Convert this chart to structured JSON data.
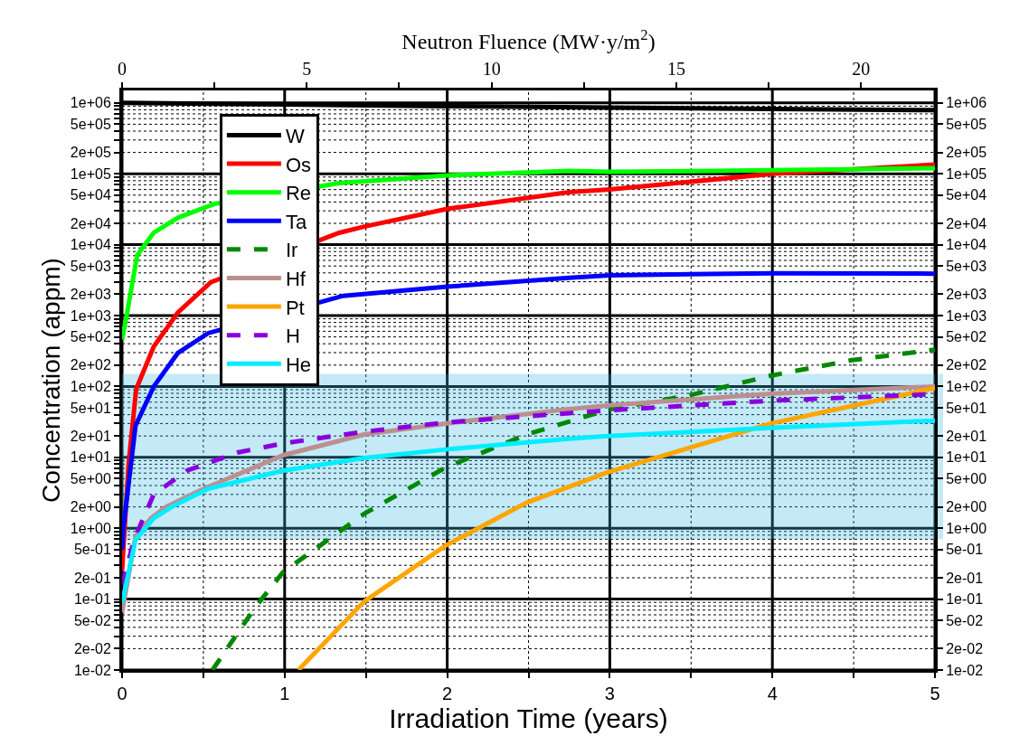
{
  "chart_data": {
    "type": "line",
    "xlabel": "Irradiation Time (years)",
    "ylabel": "Concentration (appm)",
    "x2label": "Neutron Fluence (MW·y/m$^{2}$)",
    "xlim": [
      0,
      5
    ],
    "xticks": [
      0,
      {
        "value": 0.5,
        "label": null
      },
      1,
      {
        "value": 1.5,
        "label": null
      },
      2,
      {
        "value": 2.5,
        "label": null
      },
      3,
      {
        "value": 3.5,
        "label": null
      },
      4,
      {
        "value": 4.5,
        "label": null
      },
      5
    ],
    "x2lim": [
      0,
      22
    ],
    "x2ticks": [
      0,
      {
        "value": 2.5,
        "label": null
      },
      5,
      {
        "value": 7.5,
        "label": null
      },
      10,
      {
        "value": 12.5,
        "label": null
      },
      15,
      {
        "value": 17.5,
        "label": null
      },
      20
    ],
    "log": "y",
    "ylim": [
      0.01,
      1500000
    ],
    "yticks": [
      {
        "value": 0.01,
        "label": "1e-02"
      },
      {
        "value": 0.02,
        "label": "2e-02"
      },
      {
        "value": 0.03,
        "label": null
      },
      {
        "value": 0.04,
        "label": null
      },
      {
        "value": 0.05,
        "label": "5e-02"
      },
      {
        "value": 0.06,
        "label": null
      },
      {
        "value": 0.07,
        "label": null
      },
      {
        "value": 0.08,
        "label": null
      },
      {
        "value": 0.09,
        "label": null
      },
      {
        "value": 0.1,
        "label": "1e-01"
      },
      {
        "value": 0.2,
        "label": "2e-01"
      },
      {
        "value": 0.3,
        "label": null
      },
      {
        "value": 0.4,
        "label": null
      },
      {
        "value": 0.5,
        "label": "5e-01"
      },
      {
        "value": 0.6,
        "label": null
      },
      {
        "value": 0.7,
        "label": null
      },
      {
        "value": 0.8,
        "label": null
      },
      {
        "value": 0.9,
        "label": null
      },
      {
        "value": 1,
        "label": "1e+00"
      },
      {
        "value": 2,
        "label": "2e+00"
      },
      {
        "value": 3,
        "label": null
      },
      {
        "value": 4,
        "label": null
      },
      {
        "value": 5,
        "label": "5e+00"
      },
      {
        "value": 6,
        "label": null
      },
      {
        "value": 7,
        "label": null
      },
      {
        "value": 8,
        "label": null
      },
      {
        "value": 9,
        "label": null
      },
      {
        "value": 10,
        "label": "1e+01"
      },
      {
        "value": 20,
        "label": "2e+01"
      },
      {
        "value": 30,
        "label": null
      },
      {
        "value": 40,
        "label": null
      },
      {
        "value": 50,
        "label": "5e+01"
      },
      {
        "value": 60,
        "label": null
      },
      {
        "value": 70,
        "label": null
      },
      {
        "value": 80,
        "label": null
      },
      {
        "value": 90,
        "label": null
      },
      {
        "value": 100,
        "label": "1e+02"
      },
      {
        "value": 200,
        "label": "2e+02"
      },
      {
        "value": 300,
        "label": null
      },
      {
        "value": 400,
        "label": null
      },
      {
        "value": 500,
        "label": "5e+02"
      },
      {
        "value": 600,
        "label": null
      },
      {
        "value": 700,
        "label": null
      },
      {
        "value": 800,
        "label": null
      },
      {
        "value": 900,
        "label": null
      },
      {
        "value": 1000,
        "label": "1e+03"
      },
      {
        "value": 2000,
        "label": "2e+03"
      },
      {
        "value": 3000,
        "label": null
      },
      {
        "value": 4000,
        "label": null
      },
      {
        "value": 5000,
        "label": "5e+03"
      },
      {
        "value": 6000,
        "label": null
      },
      {
        "value": 7000,
        "label": null
      },
      {
        "value": 8000,
        "label": null
      },
      {
        "value": 9000,
        "label": null
      },
      {
        "value": 10000,
        "label": "1e+04"
      },
      {
        "value": 20000,
        "label": "2e+04"
      },
      {
        "value": 30000,
        "label": null
      },
      {
        "value": 40000,
        "label": null
      },
      {
        "value": 50000,
        "label": "5e+04"
      },
      {
        "value": 60000,
        "label": null
      },
      {
        "value": 70000,
        "label": null
      },
      {
        "value": 80000,
        "label": null
      },
      {
        "value": 90000,
        "label": null
      },
      {
        "value": 100000,
        "label": "1e+05"
      },
      {
        "value": 200000,
        "label": "2e+05"
      },
      {
        "value": 300000,
        "label": null
      },
      {
        "value": 400000,
        "label": null
      },
      {
        "value": 500000,
        "label": "5e+05"
      },
      {
        "value": 600000,
        "label": null
      },
      {
        "value": 700000,
        "label": null
      },
      {
        "value": 800000,
        "label": null
      },
      {
        "value": 900000,
        "label": null
      },
      {
        "value": 1000000,
        "label": "1e+06"
      }
    ],
    "grid": true,
    "legend": "top left",
    "marker": "none",
    "bands": [
      {
        "axis": "y",
        "from": 0.7,
        "to": 150,
        "color": "#3ab6e4"
      }
    ],
    "series": [
      {
        "name": "W",
        "color": "#000000",
        "x": [
          0,
          1,
          2,
          3,
          4,
          5
        ],
        "values": [
          1000000,
          950000,
          900000,
          860000,
          820000,
          790000
        ]
      },
      {
        "name": "Os",
        "color": "#ff0000",
        "x": [
          0,
          0.04,
          0.087,
          0.195,
          0.343,
          0.546,
          1.335,
          1.49,
          2.0,
          2.75,
          3.0,
          4.0,
          5.0
        ],
        "values": [
          0.25,
          8,
          92,
          365,
          1100,
          2950,
          14700,
          18000,
          32000,
          55000,
          60000,
          100000,
          135000
        ]
      },
      {
        "name": "Re",
        "color": "#00ff00",
        "x": [
          0,
          0.03,
          0.093,
          0.195,
          0.343,
          0.566,
          1.335,
          2.0,
          2.75,
          3.0,
          4.0,
          5.0
        ],
        "values": [
          460,
          1050,
          7100,
          14800,
          24000,
          37500,
          74000,
          95000,
          110000,
          107000,
          112000,
          120000
        ]
      },
      {
        "name": "Ta",
        "color": "#0000ff",
        "x": [
          0,
          0.01,
          0.083,
          0.195,
          0.343,
          0.53,
          1.36,
          2.0,
          2.75,
          3.0,
          4.0,
          5.0
        ],
        "values": [
          0.5,
          1.1,
          28,
          100,
          296,
          565,
          1900,
          2560,
          3400,
          3700,
          3950,
          3900
        ]
      },
      {
        "name": "Ir",
        "color": "#008800",
        "line_style": "dashed",
        "x": [
          0.556,
          0.825,
          0.99,
          1.49,
          1.99,
          2.49,
          2.99,
          3.49,
          3.88,
          3.99,
          4.49,
          5.0
        ],
        "values": [
          0.01,
          0.08,
          0.24,
          1.6,
          7.2,
          21,
          47,
          75,
          123,
          142,
          235,
          330
        ]
      },
      {
        "name": "Hf",
        "color": "#bc8f8f",
        "x": [
          0,
          0.083,
          0.18,
          0.27,
          0.49,
          0.99,
          1.49,
          1.99,
          2.75,
          2.99,
          3.99,
          5.0
        ],
        "values": [
          0.065,
          0.77,
          1.4,
          2.0,
          3.5,
          10.7,
          21,
          30,
          48,
          54,
          79,
          100
        ]
      },
      {
        "name": "Pt",
        "color": "#ffa500",
        "x": [
          1.085,
          1.49,
          1.99,
          2.49,
          2.99,
          3.99,
          5.0
        ],
        "values": [
          0.01,
          0.093,
          0.57,
          2.3,
          6.2,
          30,
          95
        ]
      },
      {
        "name": "H",
        "color": "#8800dd",
        "line_style": "dashed",
        "x": [
          0,
          0.074,
          0.195,
          0.4,
          0.71,
          0.99,
          1.49,
          1.99,
          2.75,
          2.99,
          3.99,
          5.0
        ],
        "values": [
          0.16,
          0.69,
          3.0,
          6.5,
          11.7,
          15.7,
          23,
          31,
          42,
          46,
          63,
          78
        ]
      },
      {
        "name": "He",
        "color": "#00eeff",
        "x": [
          0,
          0.083,
          0.195,
          0.306,
          0.53,
          0.99,
          1.49,
          1.99,
          2.75,
          2.99,
          3.99,
          5.0
        ],
        "values": [
          0.088,
          0.69,
          1.38,
          2.0,
          3.6,
          6.5,
          9.8,
          12.9,
          18.3,
          20,
          26,
          33
        ]
      }
    ]
  }
}
